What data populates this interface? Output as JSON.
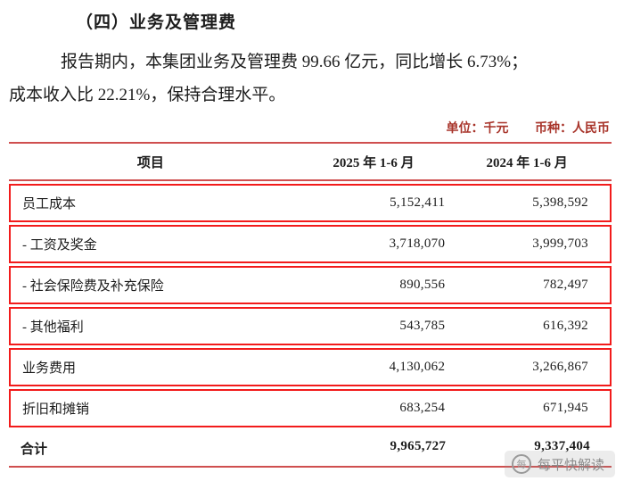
{
  "doc": {
    "section_title": "（四）业务及管理费",
    "para_line1": "报告期内，本集团业务及管理费 99.66 亿元，同比增长 6.73%；",
    "para_line2": "成本收入比 22.21%，保持合理水平。",
    "unit_label": "单位：千元",
    "currency_label": "币种：人民币"
  },
  "table": {
    "headers": [
      "项目",
      "2025 年 1-6 月",
      "2024 年 1-6 月"
    ],
    "rows": [
      {
        "label": "员工成本",
        "y2025": "5,152,411",
        "y2024": "5,398,592"
      },
      {
        "label": "- 工资及奖金",
        "y2025": "3,718,070",
        "y2024": "3,999,703"
      },
      {
        "label": "- 社会保险费及补充保险",
        "y2025": "890,556",
        "y2024": "782,497"
      },
      {
        "label": "- 其他福利",
        "y2025": "543,785",
        "y2024": "616,392"
      },
      {
        "label": "业务费用",
        "y2025": "4,130,062",
        "y2024": "3,266,867"
      },
      {
        "label": "折旧和摊销",
        "y2025": "683,254",
        "y2024": "671,945"
      }
    ],
    "total": {
      "label": "合计",
      "y2025": "9,965,727",
      "y2024": "9,337,404"
    }
  },
  "watermark": {
    "text": "每平快解读",
    "logo_char": "每"
  },
  "colors": {
    "table_rule": "#cf4f4f",
    "highlight_box": "#f21b1b",
    "unit_text": "#a8342a"
  }
}
